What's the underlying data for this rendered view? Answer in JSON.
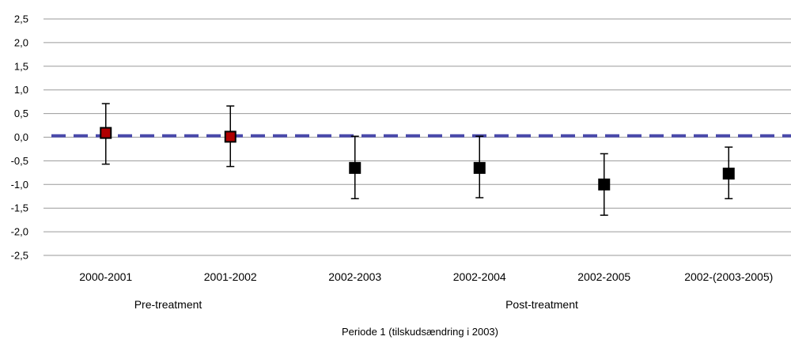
{
  "chart_data": {
    "type": "scatter",
    "title": "",
    "xlabel": "Periode 1 (tilskudsændring i 2003)",
    "ylabel": "",
    "ylim": [
      -2.5,
      2.5
    ],
    "y_tick_values": [
      2.5,
      2.0,
      1.5,
      1.0,
      0.5,
      0.0,
      -0.5,
      -1.0,
      -1.5,
      -2.0,
      -2.5
    ],
    "y_tick_labels": [
      "2,5",
      "2,0",
      "1,5",
      "1,0",
      "0,5",
      "0,0",
      "-0,5",
      "-1,0",
      "-1,5",
      "-2,0",
      "-2,5"
    ],
    "grid": true,
    "legend": "none",
    "categories": [
      "2000-2001",
      "2001-2002",
      "2002-2003",
      "2002-2004",
      "2002-2005",
      "2002-(2003-2005)"
    ],
    "series": [
      {
        "values": [
          0.09,
          0.01,
          -0.65,
          -0.65,
          -1.0,
          -0.77
        ],
        "lower": [
          -0.57,
          -0.62,
          -1.3,
          -1.28,
          -1.65,
          -1.3
        ],
        "upper": [
          0.71,
          0.66,
          0.02,
          0.02,
          -0.35,
          -0.21
        ],
        "colors": [
          "#b00000",
          "#b00000",
          "#000000",
          "#000000",
          "#000000",
          "#000000"
        ]
      }
    ],
    "reference_line": {
      "y": 0.03,
      "style": "dashed",
      "color": "#4b4bab"
    },
    "groups": [
      {
        "label": "Pre-treatment",
        "categories": [
          "2000-2001",
          "2001-2002"
        ]
      },
      {
        "label": "Post-treatment",
        "categories": [
          "2002-2003",
          "2002-2004",
          "2002-2005",
          "2002-(2003-2005)"
        ]
      }
    ]
  }
}
